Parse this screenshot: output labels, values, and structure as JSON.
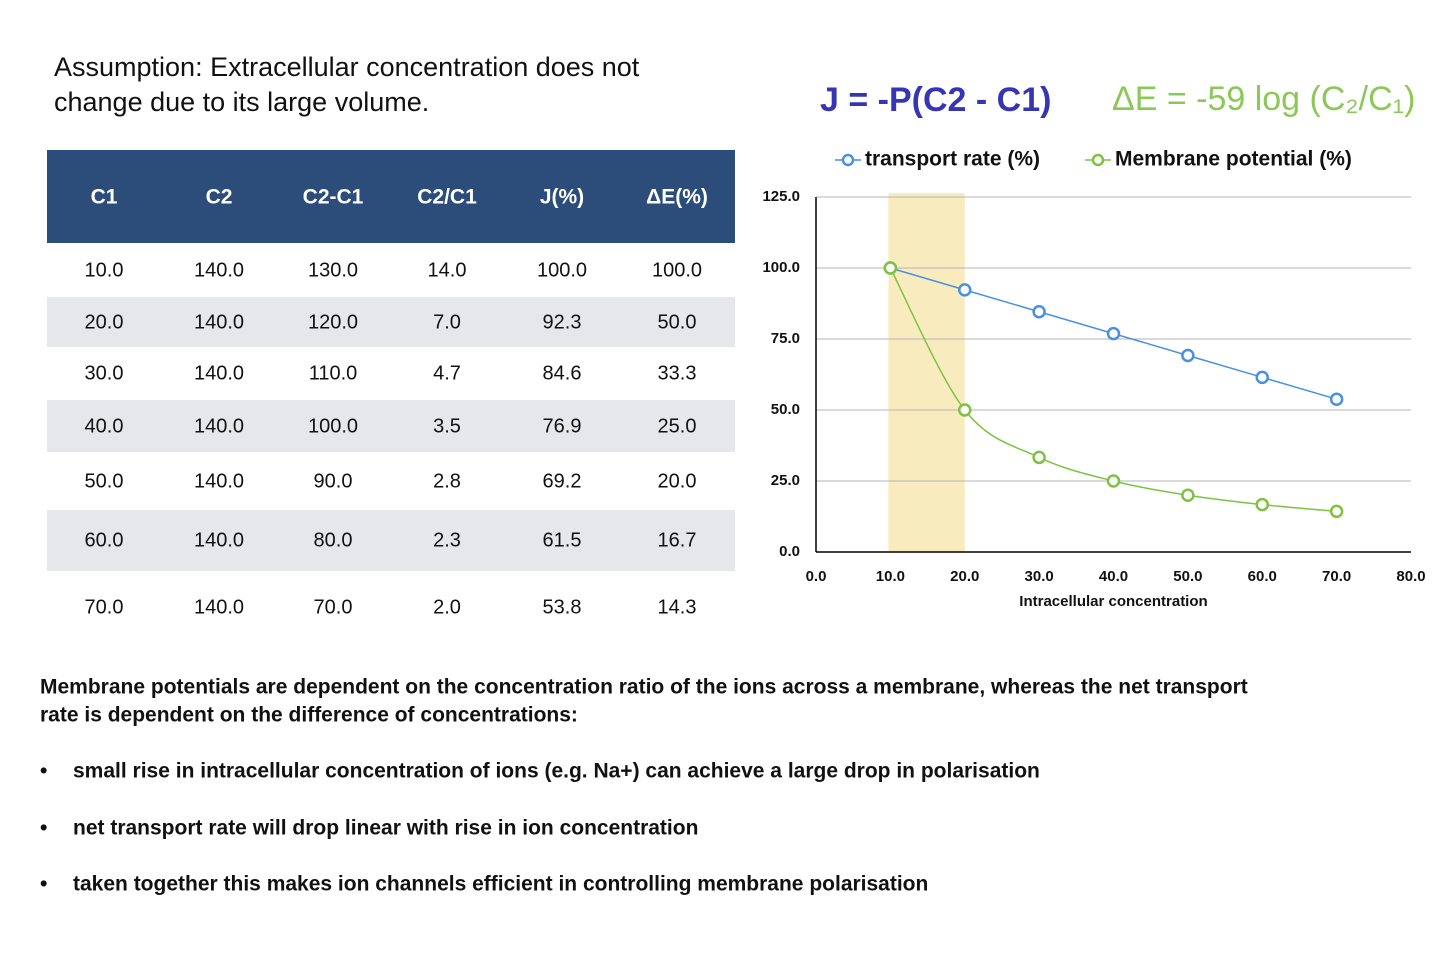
{
  "assumption": [
    "Assumption: Extracellular concentration does not",
    "change due to its large volume."
  ],
  "formulas": [
    {
      "text": "J = -P(C2 - C1)",
      "color": "#3636b4"
    },
    {
      "text": "ΔE = -59 log (C₂/C₁)",
      "color": "#8cc858"
    }
  ],
  "table": {
    "header": [
      "C1",
      "C2",
      "C2-C1",
      "C2/C1",
      "J(%)",
      "ΔE(%)"
    ],
    "rows": [
      [
        "10.0",
        "140.0",
        "130.0",
        "14.0",
        "100.0",
        "100.0"
      ],
      [
        "20.0",
        "140.0",
        "120.0",
        "7.0",
        "92.3",
        "50.0"
      ],
      [
        "30.0",
        "140.0",
        "110.0",
        "4.7",
        "84.6",
        "33.3"
      ],
      [
        "40.0",
        "140.0",
        "100.0",
        "3.5",
        "76.9",
        "25.0"
      ],
      [
        "50.0",
        "140.0",
        "90.0",
        "2.8",
        "69.2",
        "20.0"
      ],
      [
        "60.0",
        "140.0",
        "80.0",
        "2.3",
        "61.5",
        "16.7"
      ],
      [
        "70.0",
        "140.0",
        "70.0",
        "2.0",
        "53.8",
        "14.3"
      ]
    ]
  },
  "chart_data": {
    "type": "line",
    "x_label": "Intracellular concentration",
    "x": [
      10,
      20,
      30,
      40,
      50,
      60,
      70
    ],
    "series": [
      {
        "name": "transport rate (%)",
        "color": "#4a90e2",
        "smooth": false,
        "values": [
          100,
          92.3,
          84.6,
          76.9,
          69.2,
          61.5,
          53.8
        ]
      },
      {
        "name": "Membrane potential (%)",
        "color": "#7fc241",
        "smooth": true,
        "values": [
          100,
          50,
          33.3,
          25,
          20,
          16.7,
          14.3
        ]
      }
    ],
    "xlim": [
      0,
      80
    ],
    "xticks": [
      {
        "value": 0,
        "label": "0.0"
      },
      {
        "value": 10,
        "label": "10.0"
      },
      {
        "value": 20,
        "label": "20.0"
      },
      {
        "value": 30,
        "label": "30.0"
      },
      {
        "value": 40,
        "label": "40.0"
      },
      {
        "value": 50,
        "label": "50.0"
      },
      {
        "value": 60,
        "label": "60.0"
      },
      {
        "value": 70,
        "label": "70.0"
      },
      {
        "value": 80,
        "label": "80.0"
      }
    ],
    "ylim": [
      0,
      125
    ],
    "yticks": [
      {
        "value": 0,
        "label": "0.0"
      },
      {
        "value": 25,
        "label": "25.0"
      },
      {
        "value": 50,
        "label": "50.0"
      },
      {
        "value": 75,
        "label": "75.0"
      },
      {
        "value": 100,
        "label": "100.0"
      },
      {
        "value": 125,
        "label": "125.0"
      }
    ],
    "grid": true,
    "highlight_span": [
      10,
      20
    ],
    "highlight_color": "#f8ecbf",
    "legend": "top"
  },
  "notes": {
    "paragraph": [
      "Membrane potentials are dependent on the concentration ratio of the ions across a membrane, whereas the net transport",
      "rate is dependent on the difference of concentrations:"
    ],
    "bullets": [
      "small rise in intracellular concentration of ions (e.g. Na+) can achieve a large drop in polarisation",
      "net transport rate will drop linear with rise in ion concentration",
      "taken together this makes ion channels efficient in controlling membrane polarisation"
    ]
  }
}
